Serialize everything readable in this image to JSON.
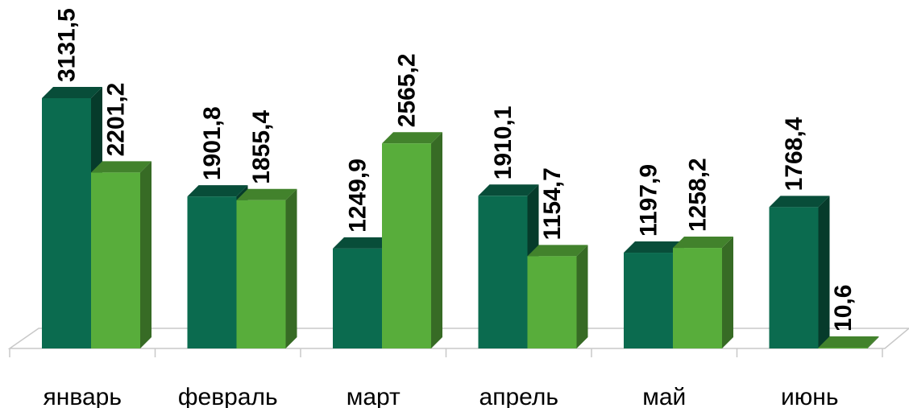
{
  "chart_data": {
    "type": "bar",
    "categories": [
      "январь",
      "февраль",
      "март",
      "апрель",
      "май",
      "июнь"
    ],
    "series": [
      {
        "values": [
          3131.5,
          1901.8,
          1249.9,
          1910.1,
          1197.9,
          1768.4
        ],
        "labels": [
          "3131,5",
          "1901,8",
          "1249,9",
          "1910,1",
          "1197,9",
          "1768,4"
        ],
        "color": "#0b6b4f"
      },
      {
        "values": [
          2201.2,
          1855.4,
          2565.2,
          1154.7,
          1258.2,
          10.6
        ],
        "labels": [
          "2201,2",
          "1855,4",
          "2565,2",
          "1154,7",
          "1258,2",
          "10,6"
        ],
        "color": "#58ad3b"
      }
    ],
    "title": "",
    "xlabel": "",
    "ylabel": "",
    "ylim": [
      0,
      3131.5
    ],
    "grid": false,
    "legend": "none",
    "style": "3d-clustered-column"
  }
}
